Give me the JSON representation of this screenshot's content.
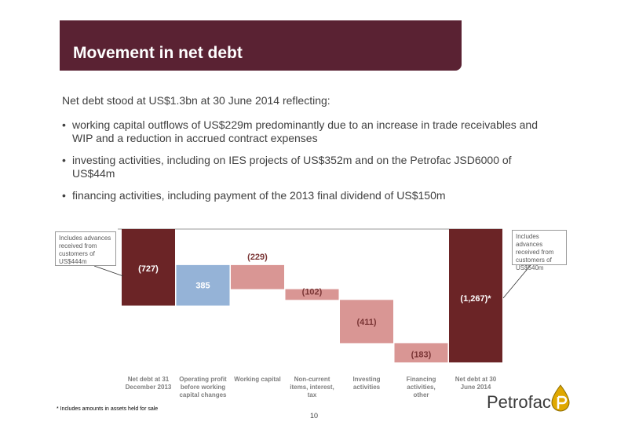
{
  "header": {
    "title": "Movement in net debt"
  },
  "intro": "Net debt stood at US$1.3bn at 30 June 2014 reflecting:",
  "bullets": [
    "working capital outflows of US$229m predominantly due to an increase in trade receivables and WIP and a reduction in accrued contract expenses",
    "investing activities, including on IES projects of US$352m and on the Petrofac JSD6000 of US$44m",
    "financing activities, including payment of the 2013 final dividend of US$150m"
  ],
  "callouts": {
    "left": "Includes advances received from customers of US$444m",
    "right": "Includes advances received from customers of US$540m"
  },
  "chart_data": {
    "type": "waterfall",
    "categories": [
      "Net debt at 31 December 2013",
      "Operating profit before working capital changes",
      "Working capital",
      "Non-current items, interest, tax",
      "Investing activities",
      "Financing activities, other",
      "Net debt at 30 June 2014"
    ],
    "values": [
      -727,
      385,
      -229,
      -102,
      -411,
      -183,
      -1267
    ],
    "labels": [
      "(727)",
      "385",
      "(229)",
      "(102)",
      "(411)",
      "(183)",
      "(1,267)*"
    ],
    "kinds": [
      "total",
      "delta",
      "delta",
      "delta",
      "delta",
      "delta",
      "total"
    ],
    "colors": {
      "total": "#6b2426",
      "increase": "#95b3d7",
      "decrease": "#d99694"
    },
    "ylim": [
      -1267,
      0
    ]
  },
  "footnote": "* Includes amounts in assets held for sale",
  "page_number": "10",
  "logo": {
    "text": "Petrofac",
    "icon": "petrofac-drop-icon"
  }
}
